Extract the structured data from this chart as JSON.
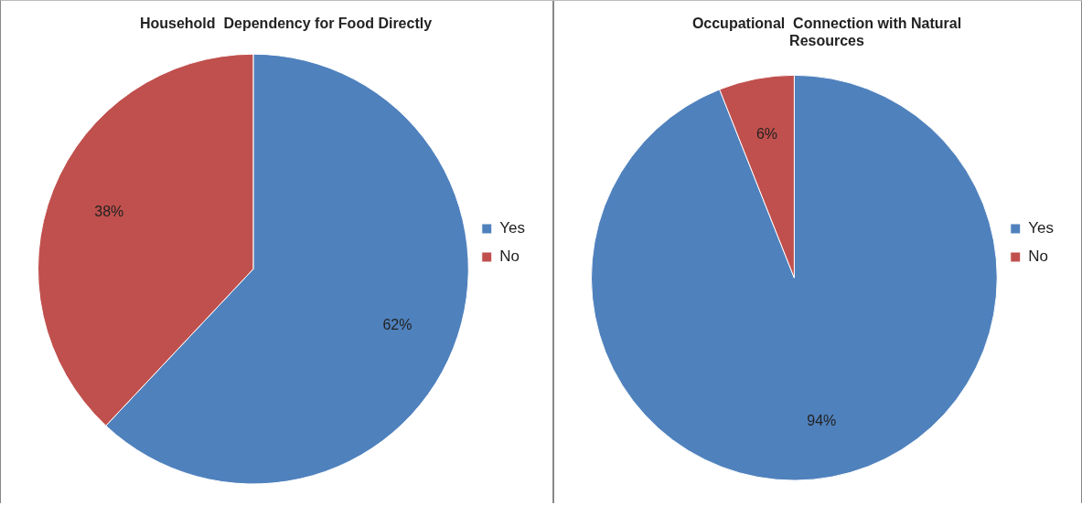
{
  "chart_data": [
    {
      "type": "pie",
      "title": "Household  Dependency for Food Directly",
      "categories": [
        "Yes",
        "No"
      ],
      "values": [
        62,
        38
      ],
      "colors": [
        "#4f81bd",
        "#c0504d"
      ],
      "value_labels": [
        "62%",
        "38%"
      ],
      "legend": "right"
    },
    {
      "type": "pie",
      "title": "Occupational  Connection with Natural Resources",
      "categories": [
        "Yes",
        "No"
      ],
      "values": [
        94,
        6
      ],
      "colors": [
        "#4f81bd",
        "#c0504d"
      ],
      "value_labels": [
        "94%",
        "6%"
      ],
      "legend": "right"
    }
  ]
}
